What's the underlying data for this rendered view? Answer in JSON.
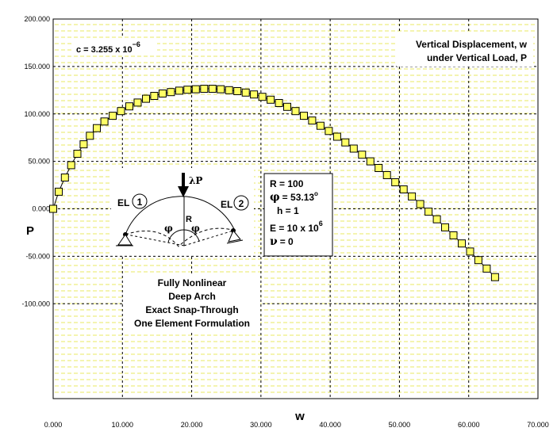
{
  "chart_data": {
    "type": "scatter",
    "title": "",
    "xlabel": "w",
    "ylabel": "P",
    "xlim": [
      0,
      70
    ],
    "ylim": [
      -200,
      200
    ],
    "x_ticks": [
      0,
      10,
      20,
      30,
      40,
      50,
      60,
      70
    ],
    "y_ticks": [
      200,
      150,
      100,
      50,
      0,
      -50,
      -100
    ],
    "x_tick_labels": [
      "0.000",
      "10.000",
      "20.000",
      "30.000",
      "40.000",
      "50.000",
      "60.000",
      "70.000"
    ],
    "y_tick_labels": [
      "200.000",
      "150.000",
      "100.000",
      "50.000",
      "0.000",
      "-50.000",
      "-100.000"
    ],
    "grid": true,
    "series": [
      {
        "marker": "square",
        "color": "#ffff66",
        "x": [
          0.0,
          0.8,
          1.7,
          2.6,
          3.5,
          4.4,
          5.3,
          6.3,
          7.4,
          8.6,
          9.8,
          11.0,
          12.2,
          13.4,
          14.6,
          15.8,
          17.0,
          18.2,
          19.4,
          20.6,
          21.8,
          23.0,
          24.2,
          25.4,
          26.6,
          27.8,
          29.0,
          30.2,
          31.4,
          32.6,
          33.8,
          35.0,
          36.2,
          37.4,
          38.6,
          39.8,
          41.0,
          42.2,
          43.4,
          44.6,
          45.8,
          47.0,
          48.2,
          49.4,
          50.6,
          51.8,
          53.0,
          54.2,
          55.4,
          56.6,
          57.8,
          59.0,
          60.2,
          61.4,
          62.6,
          63.8
        ],
        "values": [
          0.0,
          18.0,
          33.0,
          46.0,
          58.0,
          68.0,
          77.0,
          85.0,
          92.0,
          98.0,
          103.0,
          108.0,
          112.0,
          116.0,
          119.0,
          121.5,
          123.0,
          124.5,
          125.5,
          126.0,
          126.5,
          126.5,
          126.0,
          125.0,
          124.0,
          122.5,
          120.5,
          118.0,
          115.0,
          111.5,
          107.5,
          103.0,
          98.0,
          93.0,
          87.5,
          82.0,
          76.0,
          70.0,
          63.5,
          57.0,
          50.0,
          43.0,
          35.5,
          28.0,
          20.5,
          13.0,
          5.0,
          -3.0,
          -11.0,
          -19.5,
          -28.0,
          -36.5,
          -45.0,
          -54.0,
          -63.0,
          -72.0
        ]
      }
    ],
    "annotations": {
      "c_label": "c = 3.255 x 10",
      "c_exp": "−6",
      "title_line1": "Vertical Displacement, w",
      "title_line2": "under Vertical Load, P",
      "desc_line1": "Fully Nonlinear",
      "desc_line2": "Deep Arch",
      "desc_line3": "Exact Snap-Through",
      "desc_line4": "One Element Formulation",
      "load_label": "λP",
      "el1_label": "EL",
      "el1_num": "1",
      "el2_label": "EL",
      "el2_num": "2",
      "radius_label": "R",
      "phi_left": "φ",
      "phi_right": "φ",
      "param_R": "R = 100",
      "param_phi_sym": "φ",
      "param_phi_val": "= 53.13",
      "param_phi_deg": "o",
      "param_h": "h = 1",
      "param_E": "E = 10 x 10",
      "param_E_exp": "6",
      "param_nu_sym": "ν",
      "param_nu_val": "= 0"
    }
  }
}
